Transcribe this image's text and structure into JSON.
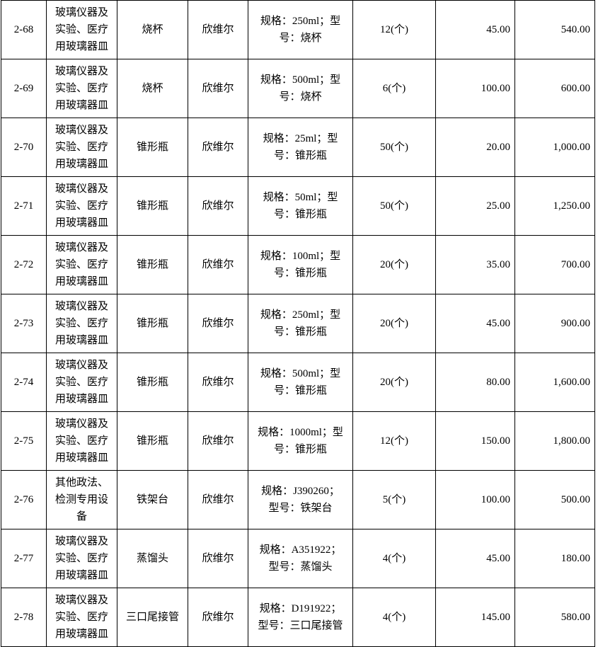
{
  "table": {
    "rows": [
      [
        "2-68",
        [
          "玻璃仪器及",
          "实验、医疗",
          "用玻璃器皿"
        ],
        "烧杯",
        "欣维尔",
        [
          "规格：250ml；型",
          "号：烧杯"
        ],
        "12(个)",
        "45.00",
        "540.00"
      ],
      [
        "2-69",
        [
          "玻璃仪器及",
          "实验、医疗",
          "用玻璃器皿"
        ],
        "烧杯",
        "欣维尔",
        [
          "规格：500ml；型",
          "号：烧杯"
        ],
        "6(个)",
        "100.00",
        "600.00"
      ],
      [
        "2-70",
        [
          "玻璃仪器及",
          "实验、医疗",
          "用玻璃器皿"
        ],
        "锥形瓶",
        "欣维尔",
        [
          "规格：25ml；型",
          "号：锥形瓶"
        ],
        "50(个)",
        "20.00",
        "1,000.00"
      ],
      [
        "2-71",
        [
          "玻璃仪器及",
          "实验、医疗",
          "用玻璃器皿"
        ],
        "锥形瓶",
        "欣维尔",
        [
          "规格：50ml；型",
          "号：锥形瓶"
        ],
        "50(个)",
        "25.00",
        "1,250.00"
      ],
      [
        "2-72",
        [
          "玻璃仪器及",
          "实验、医疗",
          "用玻璃器皿"
        ],
        "锥形瓶",
        "欣维尔",
        [
          "规格：100ml；型",
          "号：锥形瓶"
        ],
        "20(个)",
        "35.00",
        "700.00"
      ],
      [
        "2-73",
        [
          "玻璃仪器及",
          "实验、医疗",
          "用玻璃器皿"
        ],
        "锥形瓶",
        "欣维尔",
        [
          "规格：250ml；型",
          "号：锥形瓶"
        ],
        "20(个)",
        "45.00",
        "900.00"
      ],
      [
        "2-74",
        [
          "玻璃仪器及",
          "实验、医疗",
          "用玻璃器皿"
        ],
        "锥形瓶",
        "欣维尔",
        [
          "规格：500ml；型",
          "号：锥形瓶"
        ],
        "20(个)",
        "80.00",
        "1,600.00"
      ],
      [
        "2-75",
        [
          "玻璃仪器及",
          "实验、医疗",
          "用玻璃器皿"
        ],
        "锥形瓶",
        "欣维尔",
        [
          "规格：1000ml；型",
          "号：锥形瓶"
        ],
        "12(个)",
        "150.00",
        "1,800.00"
      ],
      [
        "2-76",
        [
          "其他政法、",
          "检测专用设",
          "备"
        ],
        "铁架台",
        "欣维尔",
        [
          "规格：J390260；",
          "型号：铁架台"
        ],
        "5(个)",
        "100.00",
        "500.00"
      ],
      [
        "2-77",
        [
          "玻璃仪器及",
          "实验、医疗",
          "用玻璃器皿"
        ],
        "蒸馏头",
        "欣维尔",
        [
          "规格：A351922；",
          "型号：蒸馏头"
        ],
        "4(个)",
        "45.00",
        "180.00"
      ],
      [
        "2-78",
        [
          "玻璃仪器及",
          "实验、医疗",
          "用玻璃器皿"
        ],
        "三口尾接管",
        "欣维尔",
        [
          "规格：D191922；",
          "型号：三口尾接管"
        ],
        "4(个)",
        "145.00",
        "580.00"
      ]
    ]
  }
}
